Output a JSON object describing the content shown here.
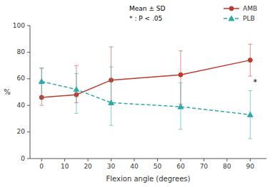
{
  "chart_data": {
    "type": "line",
    "x": [
      0,
      15,
      30,
      60,
      90
    ],
    "xlabel": "Flexion angle (degrees)",
    "ylabel": "%",
    "xlim": [
      -5,
      97
    ],
    "ylim": [
      0,
      100
    ],
    "xticks": [
      0,
      10,
      20,
      30,
      40,
      50,
      60,
      70,
      80,
      90
    ],
    "yticks": [
      0,
      20,
      40,
      60,
      80,
      100
    ],
    "grid": false,
    "legend": "upper right",
    "series": [
      {
        "name": "AMB",
        "color": "#c0392b",
        "marker": "circle",
        "line_style": "solid",
        "values": [
          46,
          48,
          59,
          63,
          74
        ],
        "error_lo": [
          6,
          6,
          18,
          22,
          12
        ],
        "error_hi": [
          22,
          22,
          25,
          18,
          12
        ]
      },
      {
        "name": "PLB",
        "color": "#2eaaaa",
        "marker": "triangle",
        "line_style": "dashed",
        "values": [
          58,
          52,
          42,
          39,
          33
        ],
        "error_lo": [
          12,
          18,
          17,
          17,
          18
        ],
        "error_hi": [
          10,
          12,
          27,
          18,
          18
        ]
      }
    ],
    "annotations": [
      {
        "text": "Mean ± SD"
      },
      {
        "text": "* : P < .05"
      },
      {
        "text": "*",
        "x": 91,
        "y": 57
      }
    ]
  }
}
